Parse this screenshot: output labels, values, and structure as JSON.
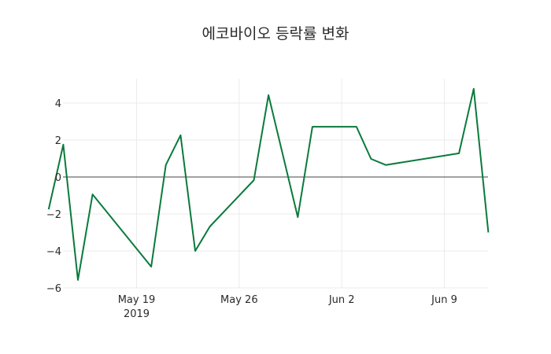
{
  "chart_data": {
    "type": "line",
    "title": "에코바이오 등락률 변화",
    "xlabel": "",
    "ylabel": "",
    "ylim": [
      -6,
      5.3
    ],
    "grid": true,
    "legend": false,
    "line_color": "#0a7a3c",
    "zero_line_color": "#444444",
    "x_ticks": [
      {
        "label": "May 19",
        "sub": "2019",
        "date": "2019-05-19"
      },
      {
        "label": "May 26",
        "sub": "",
        "date": "2019-05-26"
      },
      {
        "label": "Jun 2",
        "sub": "",
        "date": "2019-06-02"
      },
      {
        "label": "Jun 9",
        "sub": "",
        "date": "2019-06-09"
      }
    ],
    "y_ticks": [
      4,
      2,
      0,
      -2,
      -4,
      -6
    ],
    "y_tick_labels": [
      "4",
      "2",
      "0",
      "−2",
      "−4",
      "−6"
    ],
    "series": [
      {
        "name": "등락률",
        "x": [
          "2019-05-13",
          "2019-05-14",
          "2019-05-15",
          "2019-05-16",
          "2019-05-20",
          "2019-05-21",
          "2019-05-22",
          "2019-05-23",
          "2019-05-24",
          "2019-05-27",
          "2019-05-28",
          "2019-05-30",
          "2019-05-31",
          "2019-06-03",
          "2019-06-04",
          "2019-06-05",
          "2019-06-10",
          "2019-06-11",
          "2019-06-12"
        ],
        "values": [
          -1.75,
          1.75,
          -5.57,
          -0.94,
          -4.85,
          0.65,
          2.26,
          -4.0,
          -2.68,
          -0.17,
          4.43,
          -2.17,
          2.72,
          2.72,
          0.98,
          0.65,
          1.28,
          4.77,
          -3.0
        ]
      }
    ]
  }
}
